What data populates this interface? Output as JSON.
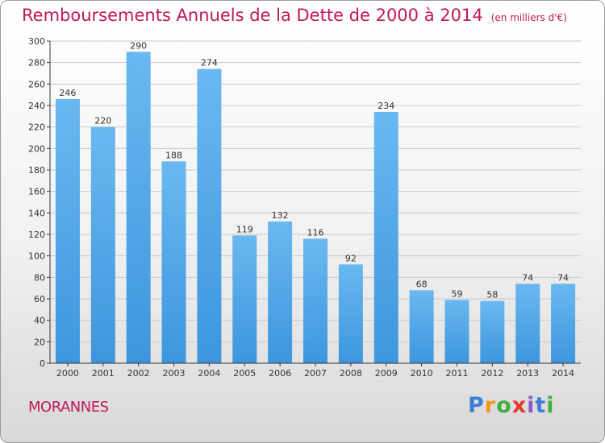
{
  "chart_data": {
    "type": "bar",
    "title": "Remboursements Annuels de la Dette de 2000 à 2014",
    "unit_note": "(en milliers d'€)",
    "categories": [
      "2000",
      "2001",
      "2002",
      "2003",
      "2004",
      "2005",
      "2006",
      "2007",
      "2008",
      "2009",
      "2010",
      "2011",
      "2012",
      "2013",
      "2014"
    ],
    "values": [
      246,
      220,
      290,
      188,
      274,
      119,
      132,
      116,
      92,
      234,
      68,
      59,
      58,
      74,
      74
    ],
    "value_labels": [
      "246",
      "220",
      "290",
      "188",
      "274",
      "119",
      "132",
      "116",
      "92",
      "234",
      "68",
      "59",
      "58",
      "74",
      "74"
    ],
    "ylim": [
      0,
      300
    ],
    "yticks": [
      0,
      20,
      40,
      60,
      80,
      100,
      120,
      140,
      160,
      180,
      200,
      220,
      240,
      260,
      280,
      300
    ],
    "ytick_labels": [
      "0",
      "20",
      "40",
      "60",
      "80",
      "100",
      "120",
      "140",
      "160",
      "180",
      "200",
      "220",
      "240",
      "260",
      "280",
      "300"
    ],
    "xlabel": "",
    "ylabel": "",
    "grid": true,
    "bar_color": "#3d96dd",
    "bar_color_light": "#6ab8f0"
  },
  "commune": "MORANNES",
  "brand": {
    "letters": [
      "P",
      "r",
      "o",
      "x",
      "i",
      "t",
      "i"
    ],
    "colors": [
      "#3a7fd0",
      "#f29a1c",
      "#3fae3a",
      "#e23b2e",
      "#8b59c4",
      "#3a7fd0",
      "#3fae3a"
    ]
  },
  "colors": {
    "title": "#c0185a",
    "axis": "#333333",
    "grid": "#c8c8c8"
  }
}
